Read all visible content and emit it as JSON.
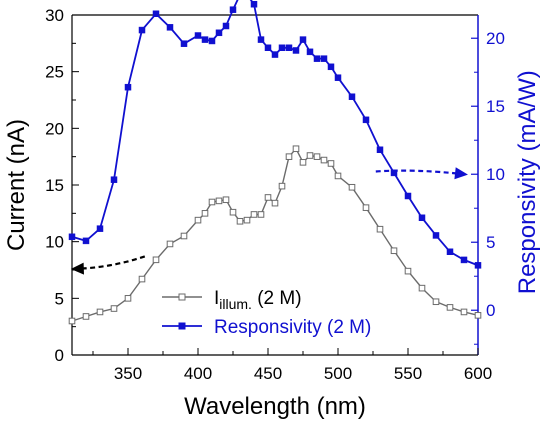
{
  "chart_data": {
    "type": "line",
    "xlabel": "Wavelength (nm)",
    "ylabel_left": "Current (nA)",
    "ylabel_right": "Responsivity (mA/W)",
    "xlim": [
      310,
      600
    ],
    "ylim_left": [
      0,
      30
    ],
    "ylim_right_ticks_origin_current": 3.95,
    "right_axis_scale_current_per_unit": 1.2,
    "x_ticks": [
      350,
      400,
      450,
      500,
      550,
      600
    ],
    "y_ticks_left": [
      0,
      5,
      10,
      15,
      20,
      25,
      30
    ],
    "y_ticks_right": [
      0,
      5,
      10,
      15,
      20
    ],
    "grid": false,
    "legend_placement": "bottom-center",
    "colors": {
      "current": "#6b6b6b",
      "responsivity": "#1010d0",
      "left_axis": "#000000",
      "right_axis": "#1010d0"
    },
    "series": [
      {
        "name_main": "I",
        "name_sub": "illum.",
        "name_suffix": " (2 M)",
        "axis": "left",
        "marker": "open-square",
        "x": [
          310,
          320,
          330,
          340,
          350,
          360,
          370,
          380,
          390,
          400,
          405,
          410,
          415,
          420,
          425,
          430,
          435,
          440,
          445,
          450,
          455,
          460,
          465,
          470,
          475,
          480,
          485,
          490,
          495,
          500,
          510,
          520,
          530,
          540,
          550,
          560,
          570,
          580,
          590,
          600
        ],
        "values": [
          3.0,
          3.4,
          3.8,
          4.1,
          5.0,
          6.7,
          8.4,
          9.8,
          10.5,
          11.9,
          12.5,
          13.5,
          13.6,
          13.7,
          12.6,
          11.8,
          11.9,
          12.4,
          12.4,
          13.9,
          13.4,
          14.9,
          17.5,
          18.2,
          17.0,
          17.6,
          17.5,
          17.2,
          16.9,
          15.8,
          14.8,
          13.0,
          11.1,
          9.2,
          7.4,
          5.9,
          4.7,
          4.2,
          3.8,
          3.5
        ]
      },
      {
        "name": "Responsivity (2 M)",
        "axis": "right",
        "marker": "filled-square",
        "x": [
          310,
          320,
          330,
          340,
          350,
          360,
          370,
          380,
          390,
          400,
          405,
          410,
          415,
          420,
          425,
          430,
          435,
          440,
          445,
          450,
          455,
          460,
          465,
          470,
          475,
          480,
          485,
          490,
          495,
          500,
          510,
          520,
          530,
          540,
          550,
          560,
          570,
          580,
          590,
          600
        ],
        "values": [
          5.4,
          5.1,
          6.0,
          9.6,
          16.4,
          20.6,
          21.8,
          20.8,
          19.6,
          20.2,
          19.9,
          19.8,
          20.4,
          20.9,
          22.1,
          23.2,
          23.2,
          22.5,
          19.9,
          19.3,
          18.8,
          19.3,
          19.3,
          19.1,
          19.9,
          19.0,
          18.5,
          18.5,
          17.9,
          17.1,
          15.7,
          14.0,
          11.8,
          10.1,
          8.4,
          6.8,
          5.5,
          4.3,
          3.7,
          3.3
        ]
      }
    ],
    "annotations": [
      {
        "kind": "dashed-arrow",
        "series_axis": "left",
        "direction": "left",
        "points_data": [
          [
            362,
            8.7
          ],
          [
            338,
            7.7
          ],
          [
            312,
            7.6
          ]
        ],
        "color": "#000000"
      },
      {
        "kind": "dashed-arrow",
        "series_axis": "right",
        "direction": "right",
        "points_data": [
          [
            527,
            10.2
          ],
          [
            555,
            10.4
          ],
          [
            590,
            10.0
          ]
        ],
        "color": "#1010d0"
      }
    ]
  }
}
